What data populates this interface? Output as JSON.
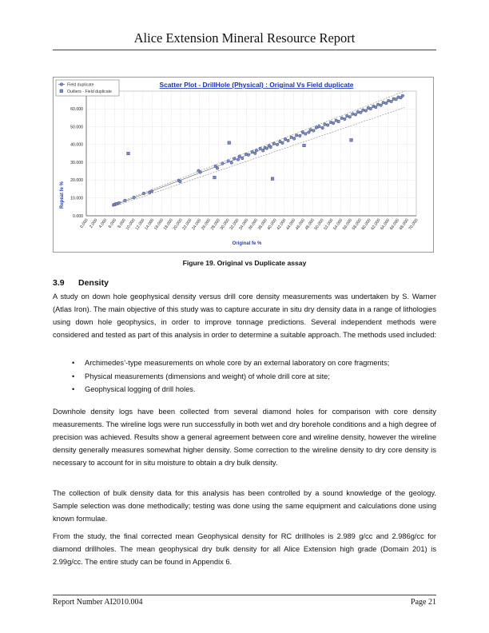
{
  "header": {
    "title": "Alice Extension Mineral Resource Report"
  },
  "figure": {
    "caption": "Figure 19. Original vs Duplicate assay"
  },
  "chart_data": {
    "type": "scatter",
    "title": "Scatter Plot - DrillHole (Physical) : Original Vs Field duplicate",
    "xlabel": "Original fe %",
    "ylabel": "Repeat fe %",
    "xlim": [
      0,
      70
    ],
    "ylim": [
      0,
      70
    ],
    "x_ticks": [
      "0.000",
      "2.000",
      "4.000",
      "6.000",
      "8.000",
      "10.000",
      "12.000",
      "14.000",
      "16.000",
      "18.000",
      "20.000",
      "22.000",
      "24.000",
      "26.000",
      "28.000",
      "30.000",
      "32.000",
      "34.000",
      "36.000",
      "38.000",
      "40.000",
      "42.000",
      "44.000",
      "46.000",
      "48.000",
      "50.000",
      "52.000",
      "54.000",
      "56.000",
      "58.000",
      "60.000",
      "62.000",
      "64.000",
      "66.000",
      "68.000",
      "70.000"
    ],
    "y_ticks": [
      "0.000",
      "10.000",
      "20.000",
      "30.000",
      "40.000",
      "50.000",
      "60.000"
    ],
    "legend": [
      "Field duplicate",
      "Outliers - Field duplicate"
    ],
    "legend_position": "top-left",
    "grid": true,
    "colors": {
      "points": "#5a6fa6",
      "title": "#1a32b8",
      "axis_label": "#2a3eaa",
      "lines": "#444444"
    },
    "series": [
      {
        "name": "Field duplicate",
        "points": [
          [
            5.8,
            6.2
          ],
          [
            6.1,
            6.5
          ],
          [
            6.4,
            6.8
          ],
          [
            6.9,
            7.2
          ],
          [
            8.2,
            8.6
          ],
          [
            10.1,
            10.3
          ],
          [
            12.2,
            12.6
          ],
          [
            13.4,
            13.1
          ],
          [
            13.9,
            13.8
          ],
          [
            19.6,
            19.9
          ],
          [
            19.9,
            19.2
          ],
          [
            23.8,
            25.3
          ],
          [
            24.2,
            24.5
          ],
          [
            27.4,
            27.9
          ],
          [
            27.8,
            26.7
          ],
          [
            28.9,
            29.4
          ],
          [
            30.1,
            30.8
          ],
          [
            30.8,
            29.8
          ],
          [
            31.4,
            32.1
          ],
          [
            32.2,
            31.6
          ],
          [
            32.5,
            33.4
          ],
          [
            33.1,
            32.3
          ],
          [
            33.9,
            34.6
          ],
          [
            34.4,
            34.2
          ],
          [
            35.2,
            35.9
          ],
          [
            35.8,
            35.1
          ],
          [
            36.1,
            36.7
          ],
          [
            36.9,
            37.8
          ],
          [
            37.5,
            36.6
          ],
          [
            37.9,
            38.2
          ],
          [
            38.3,
            37.9
          ],
          [
            38.8,
            39.4
          ],
          [
            39.1,
            38.5
          ],
          [
            39.8,
            40.6
          ],
          [
            40.5,
            40.0
          ],
          [
            41.1,
            41.7
          ],
          [
            41.6,
            40.9
          ],
          [
            42.2,
            43.1
          ],
          [
            42.8,
            42.2
          ],
          [
            43.5,
            44.1
          ],
          [
            44.1,
            43.3
          ],
          [
            44.6,
            45.2
          ],
          [
            45.3,
            44.9
          ],
          [
            45.9,
            47.0
          ],
          [
            46.5,
            46.0
          ],
          [
            47.2,
            46.9
          ],
          [
            47.6,
            48.3
          ],
          [
            48.2,
            47.8
          ],
          [
            48.8,
            49.6
          ],
          [
            49.4,
            50.2
          ],
          [
            50.1,
            49.3
          ],
          [
            50.6,
            51.4
          ],
          [
            51.2,
            50.9
          ],
          [
            51.9,
            52.5
          ],
          [
            52.4,
            52.0
          ],
          [
            53.0,
            53.6
          ],
          [
            53.5,
            52.9
          ],
          [
            54.2,
            54.9
          ],
          [
            54.8,
            54.3
          ],
          [
            55.3,
            56.1
          ],
          [
            55.9,
            55.5
          ],
          [
            56.5,
            57.2
          ],
          [
            57.1,
            56.8
          ],
          [
            57.6,
            58.3
          ],
          [
            58.2,
            58.0
          ],
          [
            58.7,
            59.4
          ],
          [
            59.3,
            59.0
          ],
          [
            59.8,
            60.6
          ],
          [
            60.3,
            60.1
          ],
          [
            60.9,
            61.5
          ],
          [
            61.4,
            61.0
          ],
          [
            61.9,
            62.5
          ],
          [
            62.5,
            62.1
          ],
          [
            63.0,
            63.6
          ],
          [
            63.6,
            63.2
          ],
          [
            64.1,
            64.6
          ],
          [
            64.7,
            64.2
          ],
          [
            65.2,
            65.7
          ],
          [
            65.7,
            65.4
          ],
          [
            66.2,
            66.6
          ],
          [
            66.7,
            66.3
          ],
          [
            67.1,
            67.4
          ]
        ]
      },
      {
        "name": "Outliers - Field duplicate",
        "points": [
          [
            8.9,
            35.0
          ],
          [
            30.3,
            41.0
          ],
          [
            27.2,
            21.5
          ],
          [
            39.5,
            20.8
          ],
          [
            46.2,
            39.5
          ],
          [
            56.2,
            42.5
          ]
        ]
      }
    ]
  },
  "section": {
    "number": "3.9",
    "title": "Density"
  },
  "paragraphs": {
    "p1": "A study on down hole geophysical density versus drill core density measurements was undertaken by S. Warner (Atlas Iron). The main objective of this study was to capture accurate in situ dry density data in a range of lithologies using down hole geophysics, in order to improve tonnage predictions. Several independent methods were considered and tested as part of this analysis in order to determine a suitable approach. The methods used included:",
    "p2": "Downhole density logs have been collected from several diamond holes for comparison with core density measurements. The wireline logs were run successfully in both wet and dry borehole conditions and a high degree of precision was achieved. Results show a general agreement between core and wireline density, however the wireline density generally measures somewhat higher density. Some correction to the wireline density to dry core density is necessary to account for in situ moisture to obtain a dry bulk density.",
    "p3": "The collection of bulk density data for this analysis has been controlled by a sound knowledge of the geology. Sample selection was done methodically; testing was done using the same equipment and calculations done using known formulae.",
    "p4": "From the study, the final corrected mean Geophysical density for RC drillholes is 2.989 g/cc and 2.986g/cc for diamond drillholes. The mean geophysical dry bulk density for all Alice Extension high grade (Domain 201) is 2.99g/cc. The entire study can be found in Appendix 6."
  },
  "bullets": [
    "Archimedes’-type measurements on whole core by an external laboratory on core fragments;",
    "Physical measurements (dimensions and weight) of whole drill core at site;",
    "Geophysical logging of drill holes."
  ],
  "footer": {
    "left": "Report Number AI2010.004",
    "right": "Page 21"
  }
}
